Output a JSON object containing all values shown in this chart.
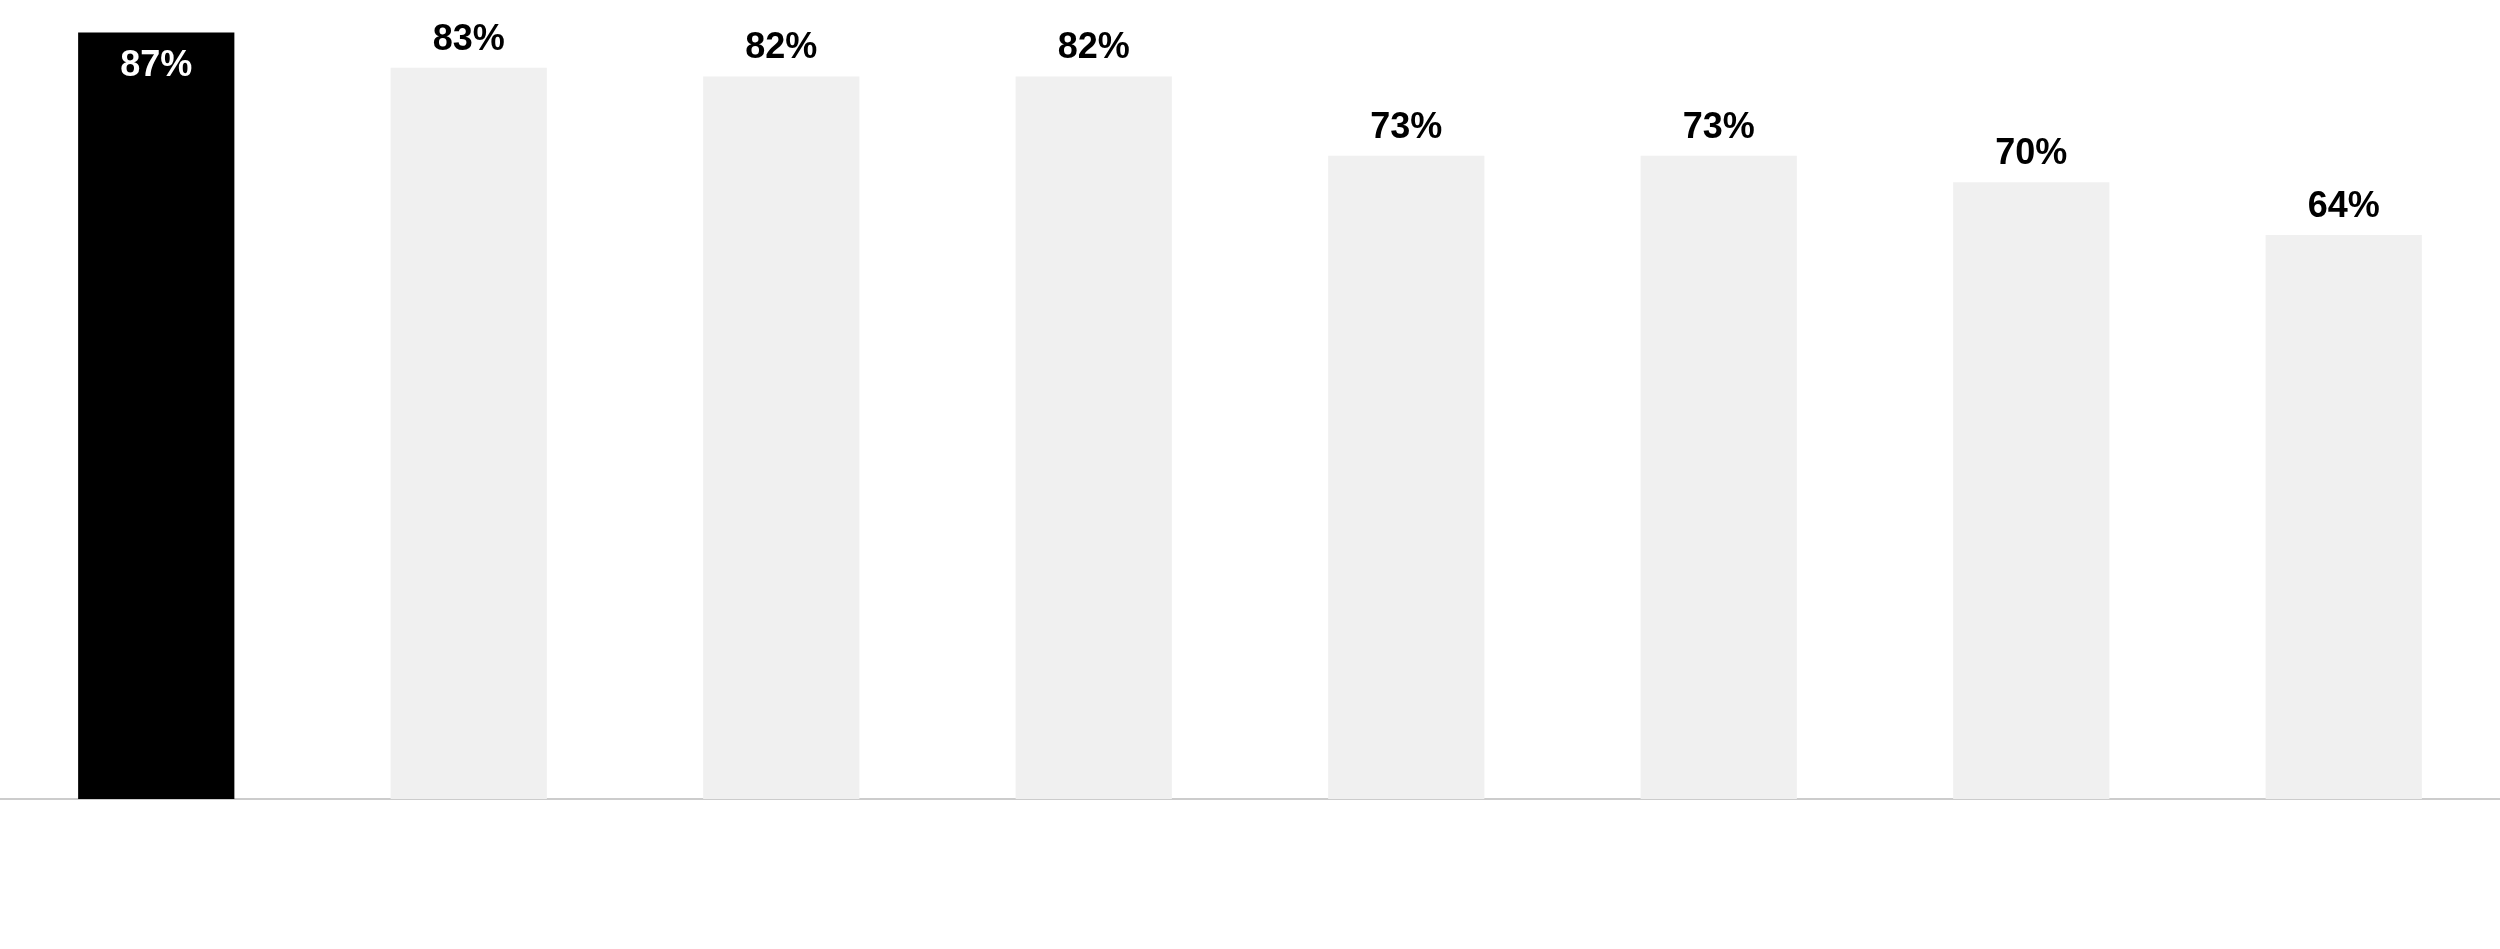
{
  "chart_data": {
    "type": "bar",
    "categories": [
      null,
      null,
      null,
      null,
      null,
      null,
      null,
      null
    ],
    "values": [
      87,
      83,
      82,
      82,
      73,
      73,
      70,
      64
    ],
    "colors": [
      "#000000",
      "#f0f0f0",
      "#f0f0f0",
      "#f0f0f0",
      "#f0f0f0",
      "#f0f0f0",
      "#f0f0f0",
      "#f0f0f0"
    ],
    "value_labels": [
      "87%",
      "83%",
      "82%",
      "82%",
      "73%",
      "73%",
      "70%",
      "64%"
    ],
    "grid": false,
    "legend": false
  }
}
